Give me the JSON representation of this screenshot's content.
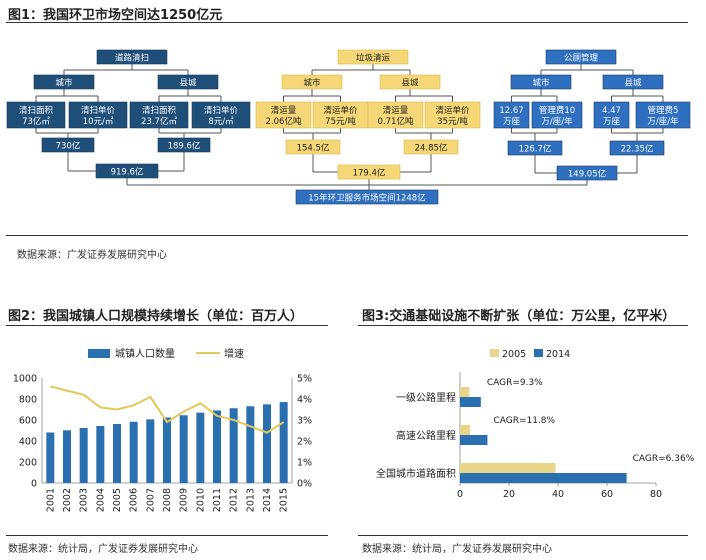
{
  "fig1": {
    "title": "图1：我国环卫市场空间达1250亿元",
    "source": "数据来源：广发证券发展研究中心",
    "road": {
      "head": "道路清扫",
      "city": "城市",
      "county": "县城",
      "city_area": [
        "清扫面积",
        "73亿㎡"
      ],
      "city_price": [
        "清扫单价",
        "10元/㎡"
      ],
      "county_area": [
        "清扫面积",
        "23.7亿㎡"
      ],
      "county_price": [
        "清扫单价",
        "8元/㎡"
      ],
      "city_value": "730亿",
      "county_value": "189.6亿",
      "total": "919.6亿"
    },
    "garbage": {
      "head": "垃圾清运",
      "city": "城市",
      "county": "县城",
      "city_volume": [
        "清运量",
        "2.06亿吨"
      ],
      "city_price": [
        "清运单价",
        "75元/吨"
      ],
      "county_volume": [
        "清运量",
        "0.71亿吨"
      ],
      "county_price": [
        "清运单价",
        "35元/吨"
      ],
      "city_value": "154.5亿",
      "county_value": "24.85亿",
      "total": "179.4亿"
    },
    "toilet": {
      "head": "公厕管理",
      "city": "城市",
      "county": "县城",
      "city_count": [
        "12.67",
        "万座"
      ],
      "city_fee": [
        "管理费10",
        "万/座/年"
      ],
      "county_count": [
        "4.47",
        "万座"
      ],
      "county_fee": [
        "管理费5",
        "万/座/年"
      ],
      "city_value": "126.7亿",
      "county_value": "22.35亿",
      "total": "149.05亿"
    },
    "grand_total": "15年环卫服务市场空间1248亿"
  },
  "fig2": {
    "title": "图2：我国城镇人口规模持续增长（单位：百万人）",
    "source": "数据来源：统计局，广发证券发展研究中心"
  },
  "fig3": {
    "title": "图3:交通基础设施不断扩张（单位：万公里，亿平米）",
    "source": "数据来源：统计局，广发证券发展研究中心"
  },
  "colors": {
    "navy": "#1f4e79",
    "gold": "#f5d778",
    "toilet_blue": "#2f6fc0",
    "bar_blue": "#2a6fb0",
    "line_yellow": "#e4c85a",
    "bar_2005": "#e9d589",
    "bar_2014": "#2a6fb0"
  },
  "chart_data": [
    {
      "type": "bar",
      "categories": [
        "2001",
        "2002",
        "2003",
        "2004",
        "2005",
        "2006",
        "2007",
        "2008",
        "2009",
        "2010",
        "2011",
        "2012",
        "2013",
        "2014",
        "2015"
      ],
      "series": [
        {
          "name": "城镇人口数量",
          "type": "bar",
          "axis": "left",
          "values": [
            481,
            502,
            524,
            543,
            562,
            583,
            606,
            624,
            645,
            670,
            691,
            712,
            731,
            749,
            771
          ]
        },
        {
          "name": "增速",
          "type": "line",
          "axis": "right",
          "values": [
            4.6,
            4.4,
            4.2,
            3.6,
            3.5,
            3.7,
            4.1,
            2.9,
            3.4,
            3.8,
            3.2,
            3.0,
            2.7,
            2.4,
            2.9
          ]
        }
      ],
      "ylim": [
        0,
        1000
      ],
      "y_ticks": [
        0,
        200,
        400,
        600,
        800,
        1000
      ],
      "y2lim": [
        0,
        5
      ],
      "y2_ticks": [
        "0%",
        "1%",
        "2%",
        "3%",
        "4%",
        "5%"
      ],
      "legend_position": "top",
      "grid": false
    },
    {
      "type": "bar",
      "orientation": "horizontal",
      "categories": [
        "一级公路里程",
        "高速公路里程",
        "全国城市道路面积"
      ],
      "series": [
        {
          "name": "2005",
          "values": [
            3.8,
            4.1,
            39
          ]
        },
        {
          "name": "2014",
          "values": [
            8.5,
            11.2,
            68
          ]
        }
      ],
      "annotations": [
        "CAGR=9.3%",
        "CAGR=11.8%",
        "CAGR=6.36%"
      ],
      "xlim": [
        0,
        80
      ],
      "x_ticks": [
        0,
        20,
        40,
        60,
        80
      ],
      "legend_position": "top-left",
      "grid": false
    }
  ]
}
